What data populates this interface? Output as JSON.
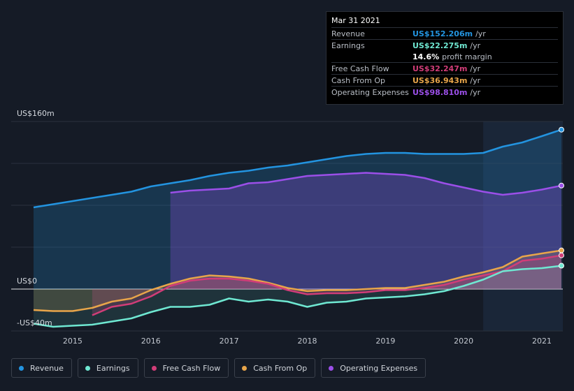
{
  "chart_data": {
    "type": "area",
    "y_axis": {
      "top_label": "US$160m",
      "zero_label": "US$0",
      "bottom_label": "-US$40m",
      "ylim": [
        -40,
        160
      ]
    },
    "x_axis": {
      "ticks": [
        "2015",
        "2016",
        "2017",
        "2018",
        "2019",
        "2020",
        "2021"
      ],
      "xlim": [
        2014.5,
        2021.25
      ]
    },
    "forecast_start": 2020.25,
    "series": [
      {
        "name": "Revenue",
        "color": "#2394e0",
        "points": [
          [
            2014.5,
            78
          ],
          [
            2014.75,
            81
          ],
          [
            2015.0,
            84
          ],
          [
            2015.25,
            87
          ],
          [
            2015.5,
            90
          ],
          [
            2015.75,
            93
          ],
          [
            2016.0,
            98
          ],
          [
            2016.25,
            101
          ],
          [
            2016.5,
            104
          ],
          [
            2016.75,
            108
          ],
          [
            2017.0,
            111
          ],
          [
            2017.25,
            113
          ],
          [
            2017.5,
            116
          ],
          [
            2017.75,
            118
          ],
          [
            2018.0,
            121
          ],
          [
            2018.25,
            124
          ],
          [
            2018.5,
            127
          ],
          [
            2018.75,
            129
          ],
          [
            2019.0,
            130
          ],
          [
            2019.25,
            130
          ],
          [
            2019.5,
            129
          ],
          [
            2019.75,
            129
          ],
          [
            2020.0,
            129
          ],
          [
            2020.25,
            130
          ],
          [
            2020.5,
            136
          ],
          [
            2020.75,
            140
          ],
          [
            2021.0,
            146
          ],
          [
            2021.25,
            152.2
          ]
        ]
      },
      {
        "name": "Operating Expenses",
        "color": "#9b4fe8",
        "points": [
          [
            2016.25,
            92
          ],
          [
            2016.5,
            94
          ],
          [
            2016.75,
            95
          ],
          [
            2017.0,
            96
          ],
          [
            2017.25,
            101
          ],
          [
            2017.5,
            102
          ],
          [
            2017.75,
            105
          ],
          [
            2018.0,
            108
          ],
          [
            2018.25,
            109
          ],
          [
            2018.5,
            110
          ],
          [
            2018.75,
            111
          ],
          [
            2019.0,
            110
          ],
          [
            2019.25,
            109
          ],
          [
            2019.5,
            106
          ],
          [
            2019.75,
            101
          ],
          [
            2020.0,
            97
          ],
          [
            2020.25,
            93
          ],
          [
            2020.5,
            90
          ],
          [
            2020.75,
            92
          ],
          [
            2021.0,
            95
          ],
          [
            2021.25,
            98.8
          ]
        ]
      },
      {
        "name": "Cash From Op",
        "color": "#e8a54a",
        "points": [
          [
            2014.5,
            -20
          ],
          [
            2014.75,
            -21
          ],
          [
            2015.0,
            -21
          ],
          [
            2015.25,
            -18
          ],
          [
            2015.5,
            -12
          ],
          [
            2015.75,
            -9
          ],
          [
            2016.0,
            -1
          ],
          [
            2016.25,
            5
          ],
          [
            2016.5,
            10
          ],
          [
            2016.75,
            13
          ],
          [
            2017.0,
            12
          ],
          [
            2017.25,
            10
          ],
          [
            2017.5,
            6
          ],
          [
            2017.75,
            1
          ],
          [
            2018.0,
            -2
          ],
          [
            2018.25,
            -1
          ],
          [
            2018.5,
            -1
          ],
          [
            2018.75,
            0
          ],
          [
            2019.0,
            1
          ],
          [
            2019.25,
            1
          ],
          [
            2019.5,
            4
          ],
          [
            2019.75,
            7
          ],
          [
            2020.0,
            12
          ],
          [
            2020.25,
            16
          ],
          [
            2020.5,
            21
          ],
          [
            2020.75,
            31
          ],
          [
            2021.0,
            34
          ],
          [
            2021.25,
            36.9
          ]
        ]
      },
      {
        "name": "Free Cash Flow",
        "color": "#d13d78",
        "points": [
          [
            2015.25,
            -25
          ],
          [
            2015.5,
            -17
          ],
          [
            2015.75,
            -14
          ],
          [
            2016.0,
            -7
          ],
          [
            2016.25,
            3
          ],
          [
            2016.5,
            8
          ],
          [
            2016.75,
            10
          ],
          [
            2017.0,
            10
          ],
          [
            2017.25,
            8
          ],
          [
            2017.5,
            5
          ],
          [
            2017.75,
            -1
          ],
          [
            2018.0,
            -5
          ],
          [
            2018.25,
            -4
          ],
          [
            2018.5,
            -4
          ],
          [
            2018.75,
            -3
          ],
          [
            2019.0,
            -1
          ],
          [
            2019.25,
            -1
          ],
          [
            2019.5,
            1
          ],
          [
            2019.75,
            4
          ],
          [
            2020.0,
            9
          ],
          [
            2020.25,
            13
          ],
          [
            2020.5,
            17
          ],
          [
            2020.75,
            27
          ],
          [
            2021.0,
            29
          ],
          [
            2021.25,
            32.2
          ]
        ]
      },
      {
        "name": "Earnings",
        "color": "#6fe8d2",
        "points": [
          [
            2014.5,
            -33
          ],
          [
            2014.75,
            -36
          ],
          [
            2015.0,
            -35
          ],
          [
            2015.25,
            -34
          ],
          [
            2015.5,
            -31
          ],
          [
            2015.75,
            -28
          ],
          [
            2016.0,
            -22
          ],
          [
            2016.25,
            -17
          ],
          [
            2016.5,
            -17
          ],
          [
            2016.75,
            -15
          ],
          [
            2017.0,
            -9
          ],
          [
            2017.25,
            -12
          ],
          [
            2017.5,
            -10
          ],
          [
            2017.75,
            -12
          ],
          [
            2018.0,
            -17
          ],
          [
            2018.25,
            -13
          ],
          [
            2018.5,
            -12
          ],
          [
            2018.75,
            -9
          ],
          [
            2019.0,
            -8
          ],
          [
            2019.25,
            -7
          ],
          [
            2019.5,
            -5
          ],
          [
            2019.75,
            -2
          ],
          [
            2020.0,
            3
          ],
          [
            2020.25,
            9
          ],
          [
            2020.5,
            17
          ],
          [
            2020.75,
            19
          ],
          [
            2021.0,
            20
          ],
          [
            2021.25,
            22.3
          ]
        ]
      }
    ]
  },
  "tooltip": {
    "date": "Mar 31 2021",
    "rows": [
      {
        "label": "Revenue",
        "value": "US$152.206m",
        "unit": "/yr",
        "color": "#2394e0"
      },
      {
        "label": "Earnings",
        "value": "US$22.275m",
        "unit": "/yr",
        "color": "#6fe8d2"
      },
      {
        "label": "Free Cash Flow",
        "value": "US$32.247m",
        "unit": "/yr",
        "color": "#d13d78"
      },
      {
        "label": "Cash From Op",
        "value": "US$36.943m",
        "unit": "/yr",
        "color": "#e8a54a"
      },
      {
        "label": "Operating Expenses",
        "value": "US$98.810m",
        "unit": "/yr",
        "color": "#9b4fe8"
      }
    ],
    "margin_value": "14.6%",
    "margin_label": "profit margin"
  },
  "legend": [
    {
      "label": "Revenue",
      "color": "#2394e0"
    },
    {
      "label": "Earnings",
      "color": "#6fe8d2"
    },
    {
      "label": "Free Cash Flow",
      "color": "#d13d78"
    },
    {
      "label": "Cash From Op",
      "color": "#e8a54a"
    },
    {
      "label": "Operating Expenses",
      "color": "#9b4fe8"
    }
  ]
}
